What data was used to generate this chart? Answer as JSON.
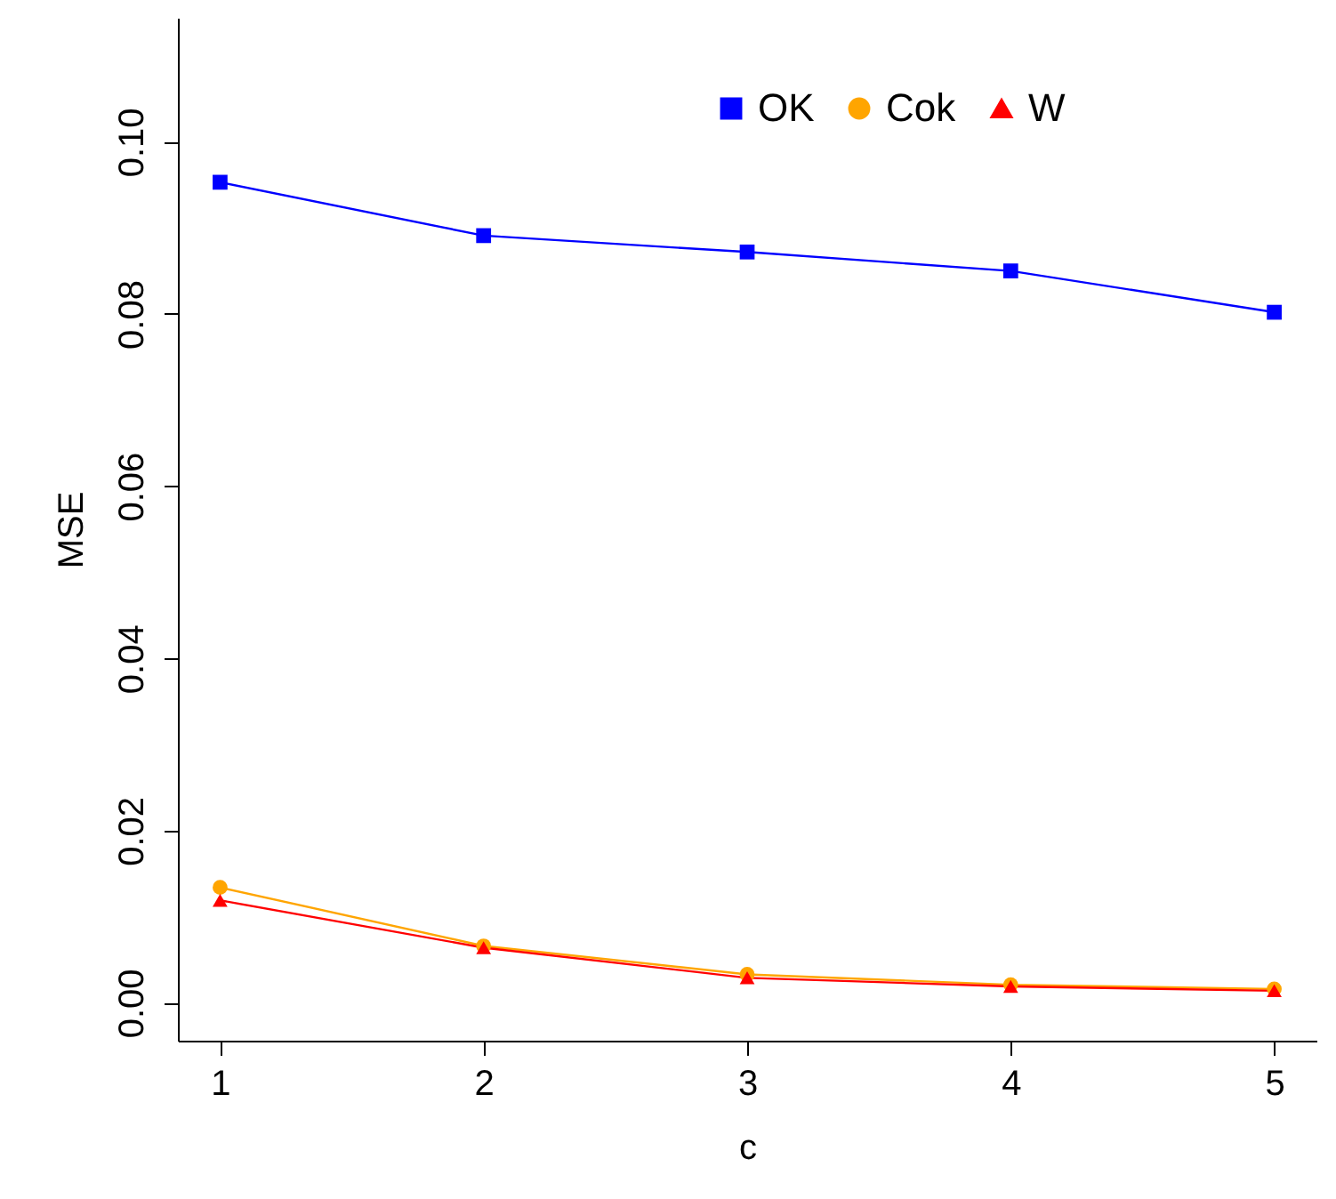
{
  "chart_data": {
    "type": "line",
    "xlabel": "c",
    "ylabel": "MSE",
    "x": [
      1,
      2,
      3,
      4,
      5
    ],
    "xlim": [
      0.84,
      5.16
    ],
    "xticks": [
      1,
      2,
      3,
      4,
      5
    ],
    "ylim": [
      -0.0044,
      0.1144
    ],
    "yticks": [
      {
        "value": 0,
        "label": "0.00"
      },
      {
        "value": 0.02,
        "label": "0.02"
      },
      {
        "value": 0.04,
        "label": "0.04"
      },
      {
        "value": 0.06,
        "label": "0.06"
      },
      {
        "value": 0.08,
        "label": "0.08"
      },
      {
        "value": 0.1,
        "label": "0.10"
      }
    ],
    "grid": false,
    "legend": "top right",
    "line_style": "solid",
    "series": [
      {
        "name": "OK",
        "color": "#0000ff",
        "marker": "square",
        "values": [
          0.0953,
          0.0891,
          0.0872,
          0.085,
          0.0802
        ]
      },
      {
        "name": "Cok",
        "color": "#ffa500",
        "marker": "circle",
        "values": [
          0.0134,
          0.0066,
          0.0033,
          0.0021,
          0.0016
        ]
      },
      {
        "name": "W",
        "color": "#ff0000",
        "marker": "triangle",
        "values": [
          0.0119,
          0.0064,
          0.0029,
          0.0019,
          0.0014
        ]
      }
    ]
  }
}
